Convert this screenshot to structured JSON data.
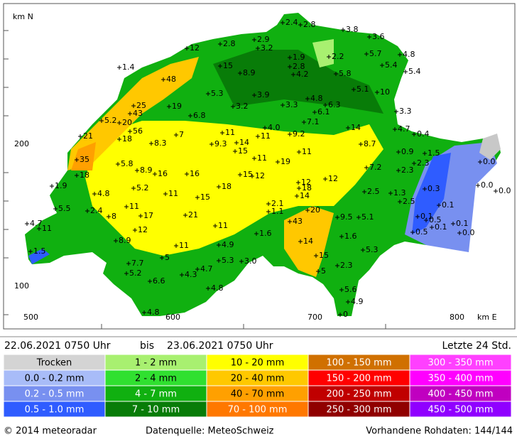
{
  "map": {
    "y_axis_title": "km N",
    "x_axis_title": "km E",
    "y_labels": [
      "200",
      "100"
    ],
    "x_labels": [
      "500",
      "600",
      "700",
      "800"
    ],
    "stations": [
      "2.4",
      "2.8",
      "3.8",
      "3.6",
      "2.9",
      "2.8",
      "3.2",
      "12",
      "5.7",
      "4.8",
      "1.9",
      "2.2",
      "5.4",
      "5.4",
      "1.4",
      "15",
      "2.8",
      "8.9",
      "4.2",
      "5.8",
      "48",
      "5.1",
      "10",
      "5.3",
      "3.9",
      "4.8",
      "19",
      "25",
      "3.2",
      "3.3",
      "6.3",
      "3.3",
      "43",
      "6.1",
      "6.8",
      "5.2",
      "20",
      "7.1",
      "56",
      "14",
      "4.0",
      "4.7",
      "0.4",
      "21",
      "18",
      "7",
      "11",
      "11",
      "9.2",
      "8.3",
      "9.3",
      "14",
      "8.7",
      "0.9",
      "1.5",
      "15",
      "11",
      "35",
      "5.8",
      "11",
      "19",
      "2.3",
      "0.0",
      "7.2",
      "2.3",
      "8.9",
      "16",
      "16",
      "15",
      "12",
      "12",
      "12",
      "18",
      "1.9",
      "5.2",
      "18",
      "18",
      "0.0",
      "0.3",
      "0.0",
      "4.8",
      "11",
      "14",
      "2.5",
      "1.3",
      "15",
      "2.1",
      "2.5",
      "1.1",
      "5.5",
      "11",
      "20",
      "0.1",
      "2.4",
      "8",
      "17",
      "21",
      "9.5",
      "5.1",
      "0.1",
      "0.5",
      "4.7",
      "11",
      "43",
      "0.1",
      "0.1",
      "12",
      "11",
      "0.5",
      "0.0",
      "1.6",
      "1.6",
      "8.9",
      "14",
      "11",
      "4.9",
      "5.3",
      "1.5",
      "15",
      "5",
      "5.3",
      "3.0",
      "7.7",
      "2.3",
      "5.2",
      "4.7",
      "4.3",
      "5",
      "6.6",
      "4.8",
      "5.6",
      "4.9",
      "4.8",
      "0"
    ]
  },
  "period": {
    "start": "22.06.2021 0750 Uhr",
    "separator": "bis",
    "end": "23.06.2021 0750 Uhr",
    "window": "Letzte 24 Std."
  },
  "legend": [
    {
      "label": "Trocken",
      "color": "#d4d4d4"
    },
    {
      "label": "0.0 - 0.2 mm",
      "color": "#a8bcf8"
    },
    {
      "label": "0.2 - 0.5 mm",
      "color": "#7890f0"
    },
    {
      "label": "0.5 - 1.0 mm",
      "color": "#2f5cff"
    },
    {
      "label": "1 - 2 mm",
      "color": "#a8f070"
    },
    {
      "label": "2 - 4 mm",
      "color": "#30e030"
    },
    {
      "label": "4 - 7 mm",
      "color": "#10b010"
    },
    {
      "label": "7 - 10 mm",
      "color": "#087c08"
    },
    {
      "label": "10 - 20 mm",
      "color": "#ffff00"
    },
    {
      "label": "20 - 40 mm",
      "color": "#ffc800"
    },
    {
      "label": "40 - 70 mm",
      "color": "#ffa000"
    },
    {
      "label": "70 - 100 mm",
      "color": "#ff7800"
    },
    {
      "label": "100 - 150 mm",
      "color": "#d07000"
    },
    {
      "label": "150 - 200 mm",
      "color": "#ff0000"
    },
    {
      "label": "200 - 250 mm",
      "color": "#c00000"
    },
    {
      "label": "250 - 300 mm",
      "color": "#900000"
    },
    {
      "label": "300 - 350 mm",
      "color": "#ff40ff"
    },
    {
      "label": "350 - 400 mm",
      "color": "#ff00ff"
    },
    {
      "label": "400 - 450 mm",
      "color": "#c000c0"
    },
    {
      "label": "450 - 500 mm",
      "color": "#9000ff"
    }
  ],
  "footer": {
    "copyright": "© 2014  meteoradar",
    "source": "Datenquelle: MeteoSchweiz",
    "raw": "Vorhandene Rohdaten: 144/144"
  }
}
